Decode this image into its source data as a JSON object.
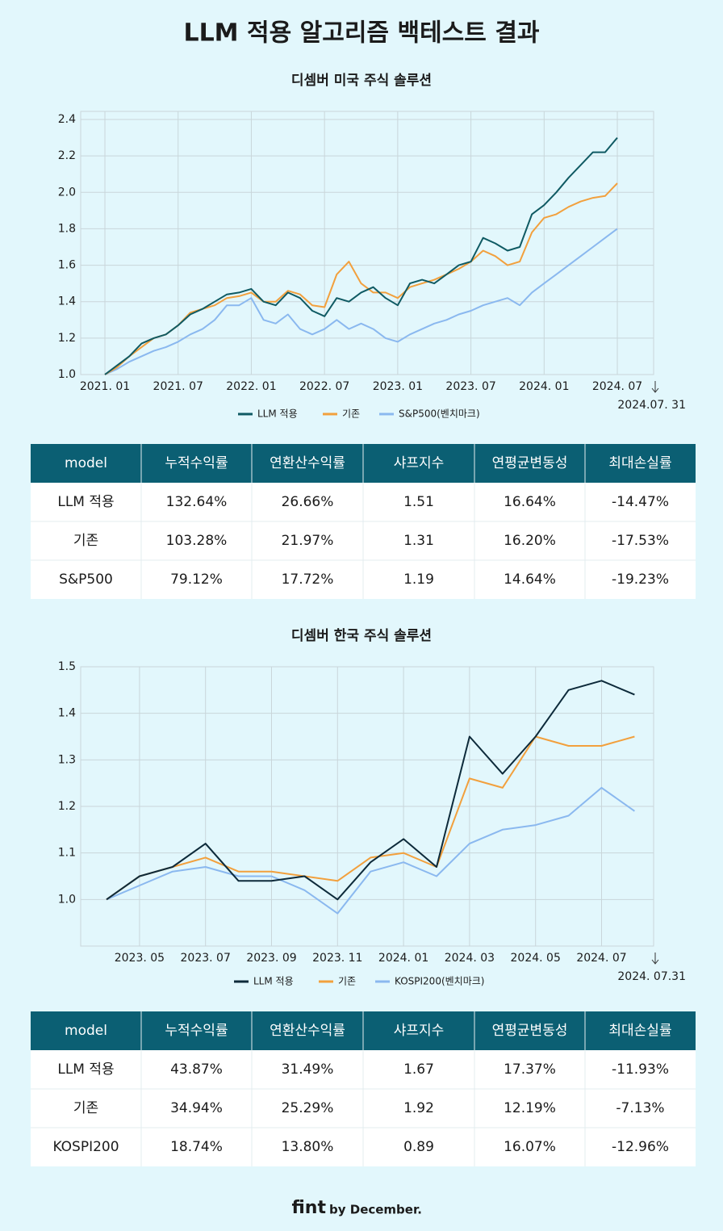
{
  "title": "LLM 적용 알고리즘 백테스트 결과",
  "chart_data": [
    {
      "type": "line",
      "title": "디셈버 미국 주식 솔루션",
      "categories": [
        "2021. 01",
        null,
        null,
        null,
        null,
        null,
        "2021. 07",
        null,
        null,
        null,
        null,
        null,
        "2022. 01",
        null,
        null,
        null,
        null,
        null,
        "2022. 07",
        null,
        null,
        null,
        null,
        null,
        "2023. 01",
        null,
        null,
        null,
        null,
        null,
        "2023. 07",
        null,
        null,
        null,
        null,
        null,
        "2024. 01",
        null,
        null,
        null,
        null,
        null,
        "2024. 07"
      ],
      "end_label": "2024.07. 31",
      "series": [
        {
          "name": "LLM 적용",
          "color": "#0f5a63",
          "values": [
            1.0,
            1.05,
            1.1,
            1.17,
            1.2,
            1.22,
            1.27,
            1.33,
            1.36,
            1.4,
            1.44,
            1.45,
            1.47,
            1.4,
            1.38,
            1.45,
            1.42,
            1.35,
            1.32,
            1.42,
            1.4,
            1.45,
            1.48,
            1.42,
            1.38,
            1.5,
            1.52,
            1.5,
            1.55,
            1.6,
            1.62,
            1.75,
            1.72,
            1.68,
            1.7,
            1.88,
            1.93,
            2.0,
            2.08,
            2.15,
            2.22,
            2.22,
            2.3
          ]
        },
        {
          "name": "기존",
          "color": "#f2a03d",
          "values": [
            1.0,
            1.04,
            1.1,
            1.15,
            1.2,
            1.22,
            1.27,
            1.34,
            1.36,
            1.38,
            1.42,
            1.43,
            1.45,
            1.4,
            1.4,
            1.46,
            1.44,
            1.38,
            1.37,
            1.55,
            1.62,
            1.5,
            1.45,
            1.45,
            1.42,
            1.48,
            1.5,
            1.52,
            1.55,
            1.58,
            1.62,
            1.68,
            1.65,
            1.6,
            1.62,
            1.78,
            1.86,
            1.88,
            1.92,
            1.95,
            1.97,
            1.98,
            2.05
          ]
        },
        {
          "name": "S&P500(벤치마크)",
          "color": "#8ab8ef",
          "values": [
            1.0,
            1.03,
            1.07,
            1.1,
            1.13,
            1.15,
            1.18,
            1.22,
            1.25,
            1.3,
            1.38,
            1.38,
            1.42,
            1.3,
            1.28,
            1.33,
            1.25,
            1.22,
            1.25,
            1.3,
            1.25,
            1.28,
            1.25,
            1.2,
            1.18,
            1.22,
            1.25,
            1.28,
            1.3,
            1.33,
            1.35,
            1.38,
            1.4,
            1.42,
            1.38,
            1.45,
            1.5,
            1.55,
            1.6,
            1.65,
            1.7,
            1.75,
            1.8
          ]
        }
      ],
      "ylim": [
        1.0,
        2.4
      ],
      "yticks": [
        {
          "value": 1.0,
          "label": "1.0"
        },
        1.2,
        1.4,
        1.6,
        1.8,
        {
          "value": 2.0,
          "label": "2.0"
        },
        2.2,
        2.4
      ],
      "grid": true,
      "legend": "bottom"
    },
    {
      "type": "line",
      "title": "디셈버 한국 주식 솔루션",
      "categories": [
        null,
        "2023. 05",
        null,
        "2023. 07",
        null,
        "2023. 09",
        null,
        "2023. 11",
        null,
        "2024. 01",
        null,
        "2024. 03",
        null,
        "2024. 05",
        null,
        "2024. 07",
        null
      ],
      "end_label": "2024. 07.31",
      "series": [
        {
          "name": "LLM 적용",
          "color": "#0d2a3a",
          "values": [
            1.0,
            1.05,
            1.07,
            1.12,
            1.04,
            1.04,
            1.05,
            1.0,
            1.08,
            1.13,
            1.07,
            1.35,
            1.27,
            1.35,
            1.45,
            1.47,
            1.44
          ]
        },
        {
          "name": "기존",
          "color": "#f2a03d",
          "values": [
            1.0,
            1.05,
            1.07,
            1.09,
            1.06,
            1.06,
            1.05,
            1.04,
            1.09,
            1.1,
            1.07,
            1.26,
            1.24,
            1.35,
            1.33,
            1.33,
            1.35
          ]
        },
        {
          "name": "KOSPI200(벤치마크)",
          "color": "#8ab8ef",
          "values": [
            1.0,
            1.03,
            1.06,
            1.07,
            1.05,
            1.05,
            1.02,
            0.97,
            1.06,
            1.08,
            1.05,
            1.12,
            1.15,
            1.16,
            1.18,
            1.24,
            1.19
          ]
        }
      ],
      "ylim": [
        0.9,
        1.5
      ],
      "yticks": [
        {
          "value": 1.0,
          "label": "1.0"
        },
        1.1,
        1.2,
        1.3,
        1.4,
        1.5
      ],
      "grid": true,
      "legend": "bottom"
    }
  ],
  "tables": [
    {
      "columns": [
        "model",
        "누적수익률",
        "연환산수익률",
        "샤프지수",
        "연평균변동성",
        "최대손실률"
      ],
      "rows": [
        [
          "LLM 적용",
          "132.64%",
          "26.66%",
          "1.51",
          "16.64%",
          "-14.47%"
        ],
        [
          "기존",
          "103.28%",
          "21.97%",
          "1.31",
          "16.20%",
          "-17.53%"
        ],
        [
          "S&P500",
          "79.12%",
          "17.72%",
          "1.19",
          "14.64%",
          "-19.23%"
        ]
      ]
    },
    {
      "columns": [
        "model",
        "누적수익률",
        "연환산수익률",
        "샤프지수",
        "연평균변동성",
        "최대손실률"
      ],
      "rows": [
        [
          "LLM 적용",
          "43.87%",
          "31.49%",
          "1.67",
          "17.37%",
          "-11.93%"
        ],
        [
          "기존",
          "34.94%",
          "25.29%",
          "1.92",
          "12.19%",
          "-7.13%"
        ],
        [
          "KOSPI200",
          "18.74%",
          "13.80%",
          "0.89",
          "16.07%",
          "-12.96%"
        ]
      ]
    }
  ],
  "footer": {
    "brand": "fint",
    "tagline": "by December."
  }
}
